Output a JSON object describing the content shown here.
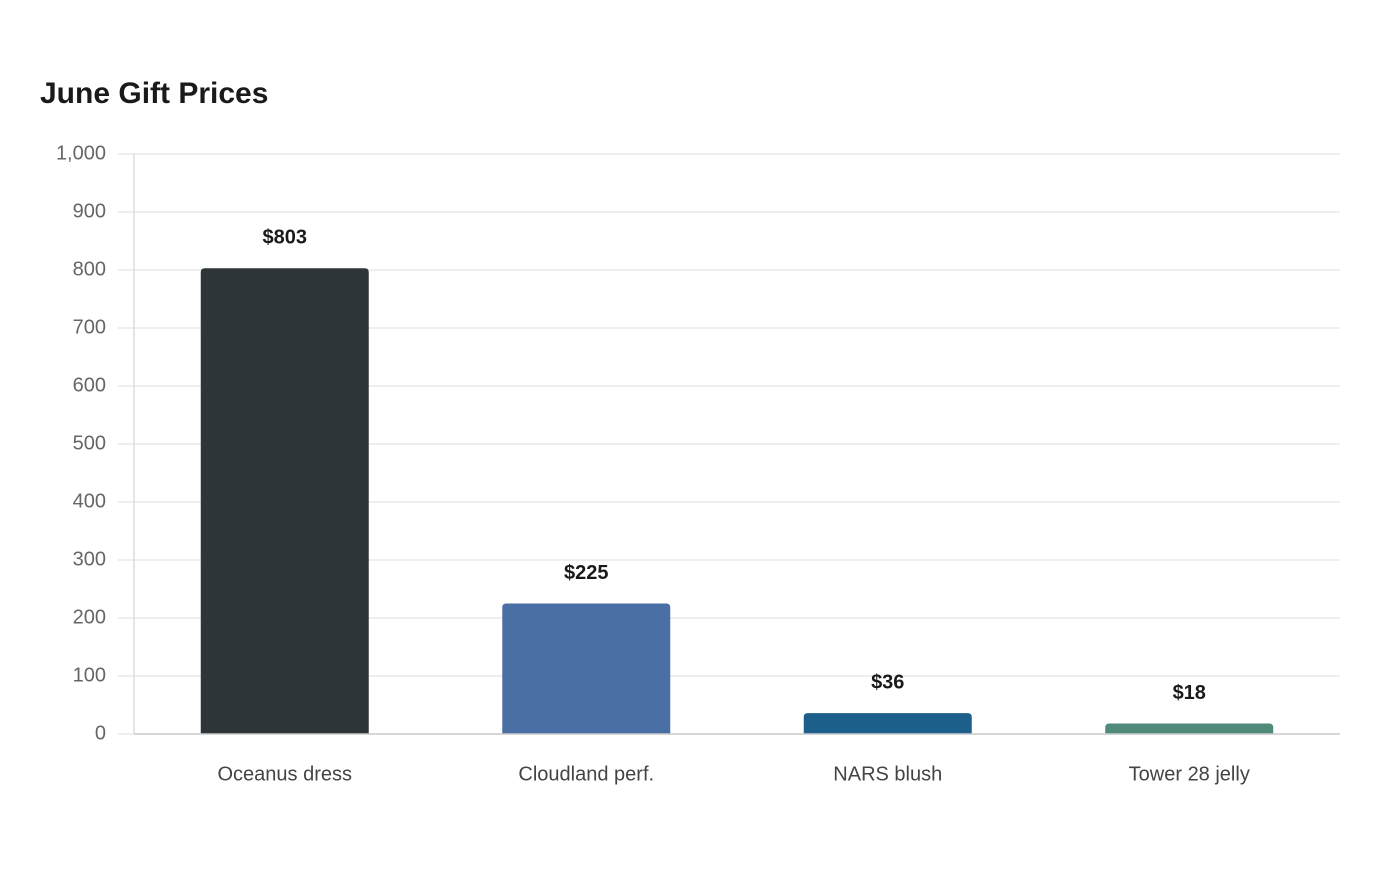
{
  "chart_data": {
    "type": "bar",
    "title": "June Gift Prices",
    "categories": [
      "Oceanus dress",
      "Cloudland perf.",
      "NARS blush",
      "Tower 28 jelly"
    ],
    "values": [
      803,
      225,
      36,
      18
    ],
    "value_labels": [
      "$803",
      "$225",
      "$36",
      "$18"
    ],
    "colors": [
      "#2e3538",
      "#4a6fa5",
      "#1b5f8a",
      "#4f8a7a"
    ],
    "ylim": [
      0,
      1000
    ],
    "yticks": [
      0,
      100,
      200,
      300,
      400,
      500,
      600,
      700,
      800,
      900,
      {
        "value": 1000,
        "label": "1,000"
      }
    ],
    "grid": true
  }
}
